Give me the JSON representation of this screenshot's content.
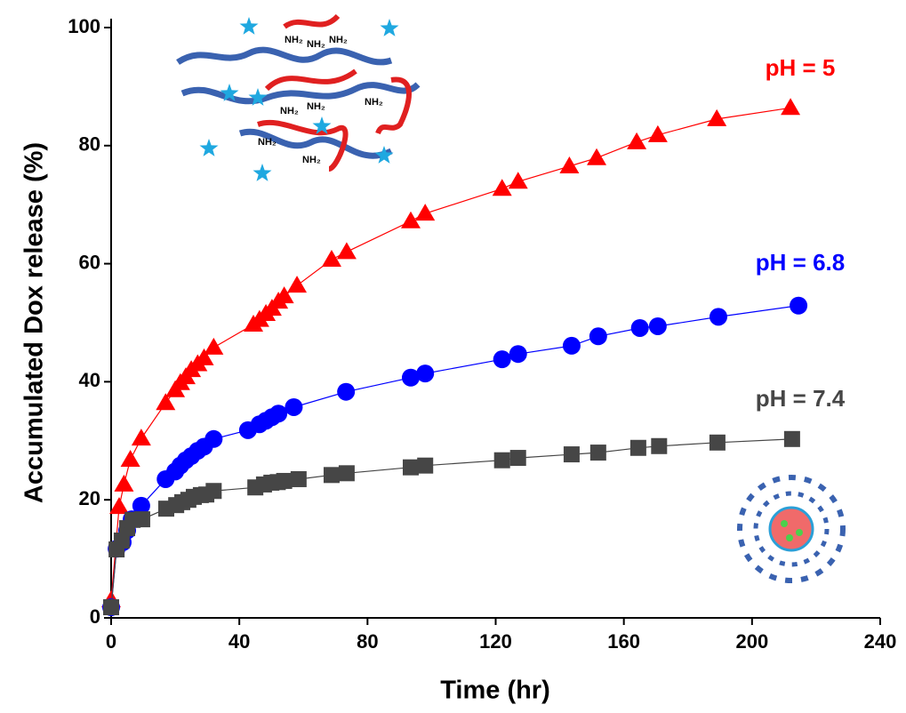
{
  "chart_data": {
    "type": "scatter-line",
    "x_label": "Time (hr)",
    "y_label": "Accumulated Dox release (%)",
    "xlim": [
      0,
      240
    ],
    "ylim": [
      0,
      100
    ],
    "xticks": [
      0,
      40,
      80,
      120,
      160,
      200,
      240
    ],
    "yticks": [
      0,
      20,
      40,
      60,
      80,
      100
    ],
    "illustration_text": "NH₂",
    "series": [
      {
        "name": "pH = 5",
        "color": "#ff0000",
        "marker": "triangle",
        "x": [
          0,
          2.5,
          4,
          6,
          9.4,
          17,
          20,
          21.6,
          23.3,
          25,
          27,
          29,
          32,
          44.4,
          46.3,
          48.3,
          50.2,
          52.2,
          54,
          58,
          68.8,
          73.5,
          93.5,
          98,
          122,
          127,
          143,
          151.5,
          164,
          170.6,
          189,
          212
        ],
        "values": [
          3,
          18.8,
          22.6,
          26.8,
          30.4,
          36.4,
          38.6,
          39.8,
          40.8,
          42,
          43,
          44,
          45.8,
          49.7,
          50.5,
          51.5,
          52.4,
          53.6,
          54.5,
          56.3,
          60.7,
          62,
          67.2,
          68.5,
          72.7,
          73.9,
          76.5,
          77.9,
          80.6,
          81.8,
          84.5,
          86.4
        ]
      },
      {
        "name": "pH = 6.8",
        "color": "#0000ff",
        "marker": "circle",
        "x": [
          0,
          1.7,
          3.6,
          5,
          6.4,
          9.4,
          17,
          20,
          21.6,
          23.3,
          25,
          27,
          29,
          32,
          42.7,
          46.3,
          48.3,
          50.2,
          52.2,
          57,
          73.3,
          93.5,
          98,
          122,
          127,
          143.7,
          152,
          165,
          170.6,
          189.5,
          214.5
        ],
        "values": [
          1.8,
          11.7,
          12.8,
          14.8,
          16.7,
          19,
          23.5,
          24.8,
          25.8,
          26.7,
          27.4,
          28.3,
          29,
          30.3,
          31.8,
          32.8,
          33.4,
          34,
          34.6,
          35.7,
          38.3,
          40.7,
          41.4,
          43.8,
          44.7,
          46.1,
          47.7,
          49.1,
          49.4,
          51,
          52.9
        ]
      },
      {
        "name": "pH = 7.4",
        "color": "#464646",
        "marker": "square",
        "x": [
          0,
          1.7,
          3.3,
          5,
          6.7,
          9.7,
          17.2,
          20.3,
          22.2,
          24.1,
          25.8,
          28,
          29.7,
          32,
          45,
          47.7,
          50,
          52,
          54,
          58.5,
          68.8,
          73.5,
          93.5,
          98,
          122,
          127,
          143.7,
          152,
          164.5,
          171,
          189.2,
          212.5
        ],
        "values": [
          1.8,
          11.6,
          13.1,
          15.2,
          16.6,
          16.7,
          18.5,
          19.1,
          19.6,
          20,
          20.5,
          20.8,
          20.9,
          21.5,
          22.1,
          22.6,
          22.9,
          23,
          23.2,
          23.5,
          24.2,
          24.5,
          25.5,
          25.8,
          26.7,
          27.1,
          27.7,
          28,
          28.8,
          29.1,
          29.7,
          30.3
        ]
      }
    ]
  }
}
